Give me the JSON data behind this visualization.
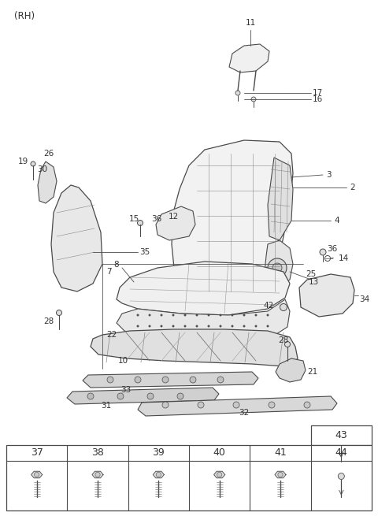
{
  "background_color": "#ffffff",
  "line_color": "#4a4a4a",
  "text_color": "#333333",
  "fig_width": 4.8,
  "fig_height": 6.55,
  "dpi": 100,
  "rh_label": "(RH)",
  "table_labels_row": [
    "37",
    "38",
    "39",
    "40",
    "41",
    "44"
  ],
  "table_top_label": "43"
}
